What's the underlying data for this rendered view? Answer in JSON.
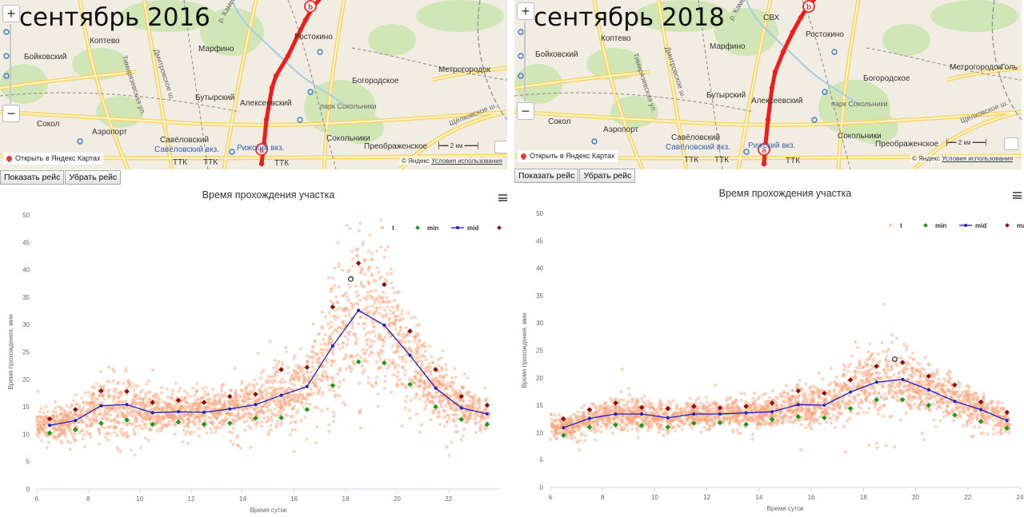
{
  "panels": [
    {
      "map": {
        "title": "сентябрь 2016",
        "zoom_in": "+",
        "zoom_out": "−",
        "places": [
          "Бойковский",
          "Коптево",
          "Марфино",
          "Ростокино",
          "Тимирязевская ул.",
          "Дмитровское ш.",
          "р. Каменка",
          "Богородское",
          "Метрогородок",
          "Бутырский",
          "Алексеевский",
          "парк Сокольники",
          "Щёлковское ш.",
          "Сокол",
          "Аэропорт",
          "Савёловский",
          "Савёловский вкз.",
          "Сокольники",
          "Преображенское",
          "Рижский вкз.",
          "ТТК",
          "ТТК",
          "ТТК"
        ],
        "route_marker_start": "a",
        "route_marker_end": "b",
        "yandex_link": "Открыть в Яндекс Картах",
        "scale_label": "2 км",
        "copyright": "© Яндекс",
        "terms": "Условия использования"
      },
      "buttons": {
        "show": "Показать рейс",
        "hide": "Убрать рейс"
      },
      "menu_icon": "hamburger-menu-icon"
    },
    {
      "map": {
        "title": "сентябрь 2018",
        "zoom_in": "+",
        "zoom_out": "−",
        "places": [
          "Бойковский",
          "Коптево",
          "Марфино",
          "Ростокино",
          "Тимирязевская ул.",
          "Дмитровское ш.",
          "р. Каменка",
          "Богородское",
          "Метрогородок",
          "Голь",
          "Бутырский",
          "Алексеевский",
          "парк Сокольники",
          "Щёлковское ш.",
          "Сокол",
          "Аэропорт",
          "Савёловский",
          "Савёловский вкз.",
          "Сокольники",
          "Преображенское",
          "Рижский вкз.",
          "ТТК",
          "ТТК",
          "ТТК",
          "СВХ"
        ],
        "route_marker_start": "a",
        "route_marker_end": "b",
        "yandex_link": "Открыть в Яндекс Картах",
        "scale_label": "2 км",
        "copyright": "© Яндекс",
        "terms": "Условия использования"
      },
      "buttons": {
        "show": "Показать рейс",
        "hide": "Убрать рейс"
      },
      "menu_icon": "hamburger-menu-icon"
    }
  ],
  "chart_data": [
    {
      "type": "scatter",
      "title": "Время прохождения участка",
      "xlabel": "Время суток",
      "ylabel": "Время прохождения, мин",
      "xlim": [
        6,
        24
      ],
      "ylim": [
        0,
        50
      ],
      "xticks": [
        6,
        8,
        10,
        12,
        14,
        16,
        18,
        20,
        22
      ],
      "yticks": [
        0,
        5,
        10,
        15,
        20,
        25,
        30,
        35,
        40,
        45,
        50
      ],
      "grid": false,
      "legend": {
        "position": "top-right",
        "items": [
          "t",
          "min",
          "mid",
          "max"
        ]
      },
      "colors": {
        "t": "#f6a57a",
        "min": "#1a9a1a",
        "mid": "#2020c0",
        "max": "#8b1010"
      },
      "series": [
        {
          "name": "mid",
          "x": [
            6.5,
            7.5,
            8.5,
            9.5,
            10.5,
            11.5,
            12.5,
            13.5,
            14.5,
            15.5,
            16.5,
            17.5,
            18.5,
            19.5,
            20.5,
            21.5,
            22.5,
            23.5
          ],
          "values": [
            11.6,
            12.5,
            15.2,
            15.4,
            13.9,
            14.1,
            14.0,
            14.6,
            15.4,
            17.1,
            18.7,
            26.1,
            32.6,
            29.9,
            24.4,
            18.4,
            14.8,
            13.7
          ]
        },
        {
          "name": "min",
          "x": [
            6.5,
            7.5,
            8.5,
            9.5,
            10.5,
            11.5,
            12.5,
            13.5,
            14.5,
            15.5,
            16.5,
            17.5,
            18.5,
            19.5,
            20.5,
            21.5,
            22.5,
            23.5
          ],
          "values": [
            10.2,
            10.8,
            12.0,
            12.6,
            11.8,
            12.2,
            11.8,
            12.0,
            12.9,
            13.0,
            14.5,
            18.9,
            23.2,
            23.0,
            19.1,
            15.0,
            12.7,
            11.8
          ]
        },
        {
          "name": "max",
          "x": [
            6.5,
            7.5,
            8.5,
            9.5,
            10.5,
            11.5,
            12.5,
            13.5,
            14.5,
            15.5,
            16.5,
            17.5,
            18.5,
            19.5,
            20.5,
            21.5,
            22.5,
            23.5
          ],
          "values": [
            12.8,
            14.5,
            17.9,
            17.8,
            15.8,
            16.2,
            15.8,
            16.9,
            17.3,
            21.8,
            22.2,
            33.2,
            41.2,
            37.3,
            28.8,
            21.8,
            16.9,
            15.3
          ]
        }
      ],
      "outlier": {
        "x": 18.2,
        "y": 38.3
      },
      "scatter_profile": {
        "mid": [
          11.6,
          12.5,
          15.2,
          15.4,
          13.9,
          14.1,
          14.0,
          14.6,
          15.4,
          17.1,
          18.7,
          26.1,
          32.6,
          29.9,
          24.4,
          18.4,
          14.8,
          13.7
        ],
        "spread": [
          1.2,
          1.6,
          2.8,
          2.8,
          1.8,
          1.8,
          1.8,
          2.0,
          2.2,
          3.3,
          3.5,
          6.0,
          8.0,
          6.0,
          4.5,
          3.0,
          2.0,
          1.6
        ]
      }
    },
    {
      "type": "scatter",
      "title": "Время прохождения участка",
      "xlabel": "Время суток",
      "ylabel": "Время прохождения, мин",
      "xlim": [
        6,
        24
      ],
      "ylim": [
        0,
        50
      ],
      "xticks": [
        6,
        8,
        10,
        12,
        14,
        16,
        18,
        20,
        22,
        24
      ],
      "yticks": [
        0,
        5,
        10,
        15,
        20,
        25,
        30,
        35,
        40,
        45,
        50
      ],
      "grid": false,
      "legend": {
        "position": "top-right",
        "items": [
          "t",
          "min",
          "mid",
          "max"
        ]
      },
      "colors": {
        "t": "#f6a57a",
        "min": "#1a9a1a",
        "mid": "#2020c0",
        "max": "#8b1010"
      },
      "series": [
        {
          "name": "mid",
          "x": [
            6.5,
            7.5,
            8.5,
            9.5,
            10.5,
            11.5,
            12.5,
            13.5,
            14.5,
            15.5,
            16.5,
            17.5,
            18.5,
            19.5,
            20.5,
            21.5,
            22.5,
            23.5
          ],
          "values": [
            10.9,
            12.6,
            13.4,
            13.4,
            12.7,
            13.4,
            13.4,
            13.6,
            13.8,
            15.1,
            15.0,
            17.4,
            19.2,
            19.7,
            17.8,
            15.7,
            14.2,
            12.2
          ]
        },
        {
          "name": "min",
          "x": [
            6.5,
            7.5,
            8.5,
            9.5,
            10.5,
            11.5,
            12.5,
            13.5,
            14.5,
            15.5,
            16.5,
            17.5,
            18.5,
            19.5,
            20.5,
            21.5,
            22.5,
            23.5
          ],
          "values": [
            9.5,
            11.0,
            11.4,
            11.3,
            11.0,
            11.7,
            11.8,
            11.5,
            12.4,
            12.9,
            12.7,
            14.4,
            16.0,
            16.0,
            15.0,
            13.2,
            12.0,
            10.8
          ]
        },
        {
          "name": "max",
          "x": [
            6.5,
            7.5,
            8.5,
            9.5,
            10.5,
            11.5,
            12.5,
            13.5,
            14.5,
            15.5,
            16.5,
            17.5,
            18.5,
            19.5,
            20.5,
            21.5,
            22.5,
            23.5
          ],
          "values": [
            12.5,
            14.2,
            15.4,
            14.6,
            14.4,
            14.8,
            14.5,
            14.8,
            15.4,
            17.6,
            17.2,
            19.6,
            22.1,
            22.8,
            20.3,
            18.7,
            15.6,
            13.7
          ]
        }
      ],
      "outlier": {
        "x": 19.2,
        "y": 23.4
      },
      "scatter_profile": {
        "mid": [
          10.9,
          12.6,
          13.4,
          13.4,
          12.7,
          13.4,
          13.4,
          13.6,
          13.8,
          15.1,
          15.0,
          17.4,
          19.2,
          19.7,
          17.8,
          15.7,
          14.2,
          12.2
        ],
        "spread": [
          1.0,
          1.3,
          1.5,
          1.3,
          1.2,
          1.2,
          1.2,
          1.3,
          1.4,
          1.8,
          1.8,
          2.5,
          3.0,
          3.0,
          2.4,
          1.8,
          1.5,
          1.2
        ]
      }
    }
  ]
}
